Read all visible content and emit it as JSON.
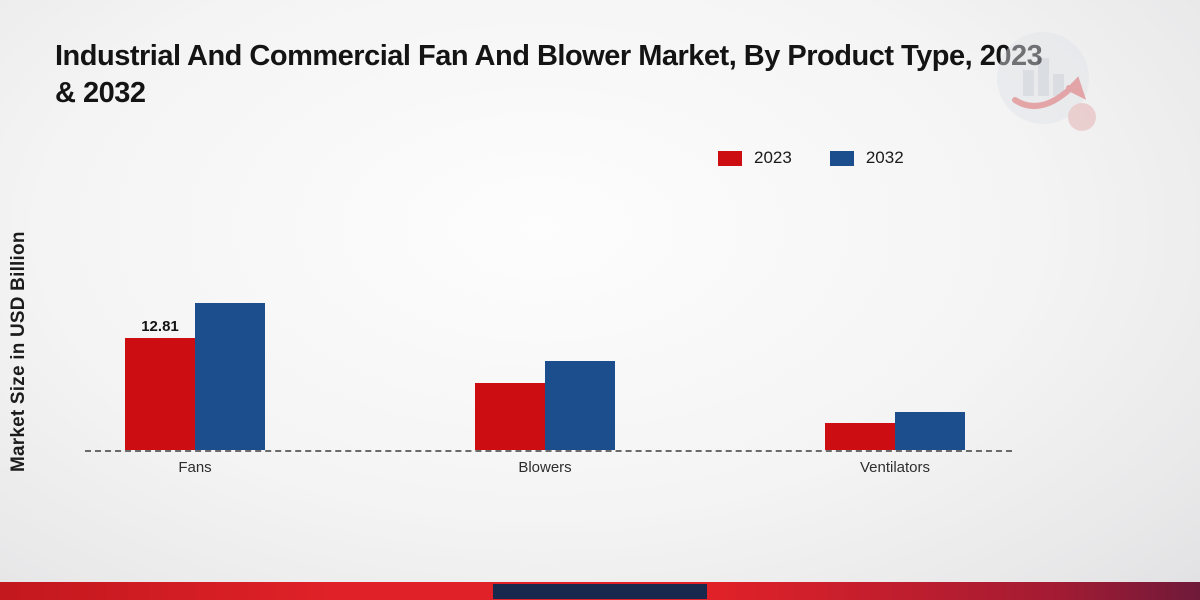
{
  "page": {
    "title": "Industrial And Commercial Fan And Blower Market, By Product Type, 2023 & 2032"
  },
  "chart_data": {
    "type": "bar",
    "title": "Industrial And Commercial Fan And Blower Market, By Product Type, 2023 & 2032",
    "ylabel": "Market Size in USD Billion",
    "xlabel": "",
    "categories": [
      "Fans",
      "Blowers",
      "Ventilators"
    ],
    "series": [
      {
        "name": "2023",
        "color": "#cc0e12",
        "values": [
          12.81,
          7.7,
          3.1
        ]
      },
      {
        "name": "2032",
        "color": "#1c4e8d",
        "values": [
          16.8,
          10.2,
          4.4
        ]
      }
    ],
    "ylim": [
      0,
      20
    ],
    "grid": false,
    "legend_position": "top-right",
    "baseline_style": "dashed",
    "annotations": [
      {
        "series_index": 0,
        "category_index": 0,
        "text": "12.81"
      }
    ]
  },
  "colors": {
    "accent_red": "#e02128",
    "accent_navy": "#19294d"
  }
}
